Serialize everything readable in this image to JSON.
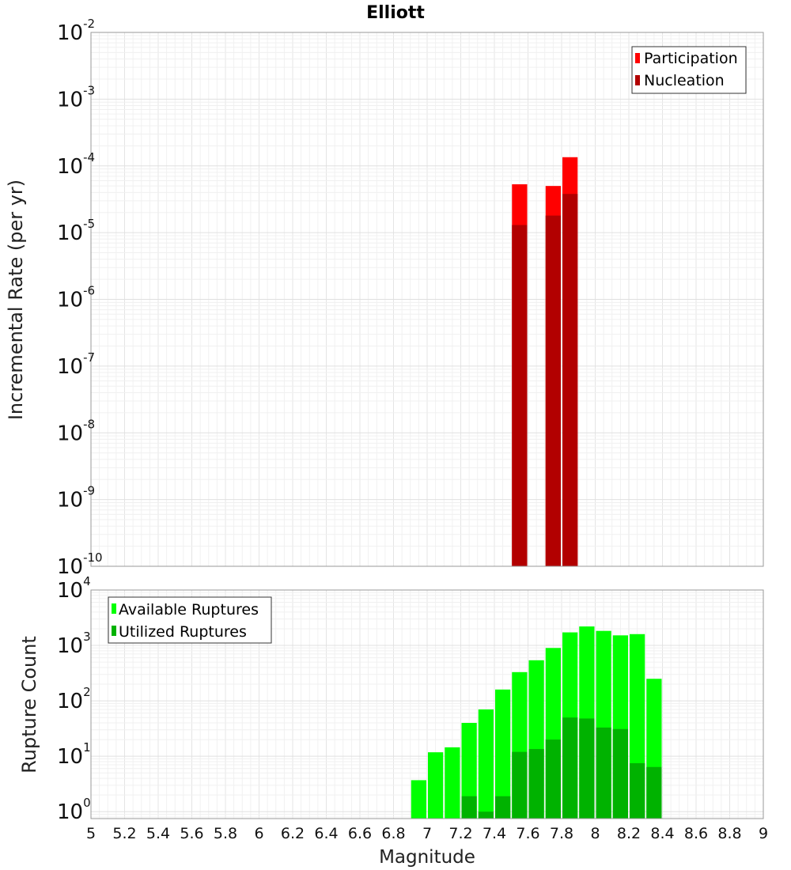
{
  "title": "Elliott",
  "xlabel": "Magnitude",
  "x_ticks": [
    "5",
    "5.2",
    "5.4",
    "5.6",
    "5.8",
    "6",
    "6.2",
    "6.4",
    "6.6",
    "6.8",
    "7",
    "7.2",
    "7.4",
    "7.6",
    "7.8",
    "8",
    "8.2",
    "8.4",
    "8.6",
    "8.8",
    "9"
  ],
  "chart_data": [
    {
      "type": "bar",
      "title": "Elliott",
      "xlabel": "Magnitude",
      "ylabel": "Incremental Rate (per yr)",
      "y_scale": "log",
      "ylim": [
        1e-10,
        0.01
      ],
      "xlim": [
        5,
        9
      ],
      "bin_width": 0.1,
      "y_tick_bases": [
        "10",
        "10",
        "10",
        "10",
        "10",
        "10",
        "10",
        "10",
        "10"
      ],
      "y_tick_exps": [
        "-10",
        "-9",
        "-8",
        "-7",
        "-6",
        "-5",
        "-4",
        "-3",
        "-2"
      ],
      "legend_position": "top-right",
      "grid": true,
      "series": [
        {
          "name": "Participation",
          "color": "#ff0000",
          "x": [
            7.55,
            7.75,
            7.85
          ],
          "values": [
            5.3e-05,
            5e-05,
            0.000135
          ]
        },
        {
          "name": "Nucleation",
          "color": "#b20000",
          "x": [
            7.55,
            7.75,
            7.85
          ],
          "values": [
            1.3e-05,
            1.8e-05,
            3.8e-05
          ]
        }
      ]
    },
    {
      "type": "bar",
      "xlabel": "Magnitude",
      "ylabel": "Rupture Count",
      "y_scale": "log",
      "ylim": [
        0.75,
        10000
      ],
      "xlim": [
        5,
        9
      ],
      "bin_width": 0.1,
      "y_tick_bases": [
        "10",
        "10",
        "10",
        "10",
        "10"
      ],
      "y_tick_exps": [
        "0",
        "1",
        "2",
        "3",
        "4"
      ],
      "legend_position": "top-left",
      "grid": true,
      "series": [
        {
          "name": "Available Ruptures",
          "color": "#00ff00",
          "x": [
            6.95,
            7.05,
            7.15,
            7.25,
            7.35,
            7.45,
            7.55,
            7.65,
            7.75,
            7.85,
            7.95,
            8.05,
            8.15,
            8.25,
            8.35
          ],
          "values": [
            3.7,
            11.8,
            14.5,
            40,
            70,
            160,
            330,
            540,
            900,
            1720,
            2200,
            1830,
            1520,
            1600,
            250
          ]
        },
        {
          "name": "Utilized Ruptures",
          "color": "#00b200",
          "x": [
            7.25,
            7.35,
            7.45,
            7.55,
            7.65,
            7.75,
            7.85,
            7.95,
            8.05,
            8.15,
            8.25,
            8.35
          ],
          "values": [
            1.9,
            1.0,
            1.9,
            12,
            13.5,
            20,
            50,
            48,
            33,
            31,
            7.5,
            6.4
          ]
        }
      ]
    }
  ]
}
